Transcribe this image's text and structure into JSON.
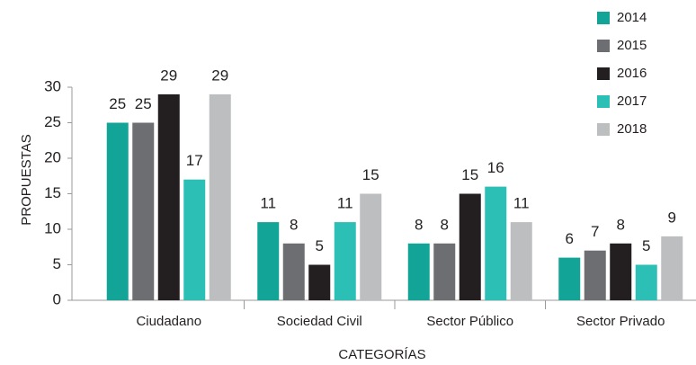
{
  "chart_data": {
    "type": "bar",
    "categories": [
      "Ciudadano",
      "Sociedad Civil",
      "Sector Público",
      "Sector Privado"
    ],
    "series": [
      {
        "name": "2014",
        "color": "#12a597",
        "values": [
          25,
          11,
          8,
          6
        ]
      },
      {
        "name": "2015",
        "color": "#6d6e71",
        "values": [
          25,
          8,
          8,
          7
        ]
      },
      {
        "name": "2016",
        "color": "#231f20",
        "values": [
          29,
          5,
          15,
          8
        ]
      },
      {
        "name": "2017",
        "color": "#2bbfb5",
        "values": [
          17,
          11,
          16,
          5
        ]
      },
      {
        "name": "2018",
        "color": "#bcbec0",
        "values": [
          29,
          15,
          11,
          9
        ]
      }
    ],
    "ylabel": "PROPUESTAS",
    "xlabel": "CATEGORÍAS",
    "ylim": [
      0,
      30
    ],
    "yticks": [
      0,
      5,
      10,
      15,
      20,
      25,
      30
    ],
    "grid": false,
    "legend": "top right"
  }
}
